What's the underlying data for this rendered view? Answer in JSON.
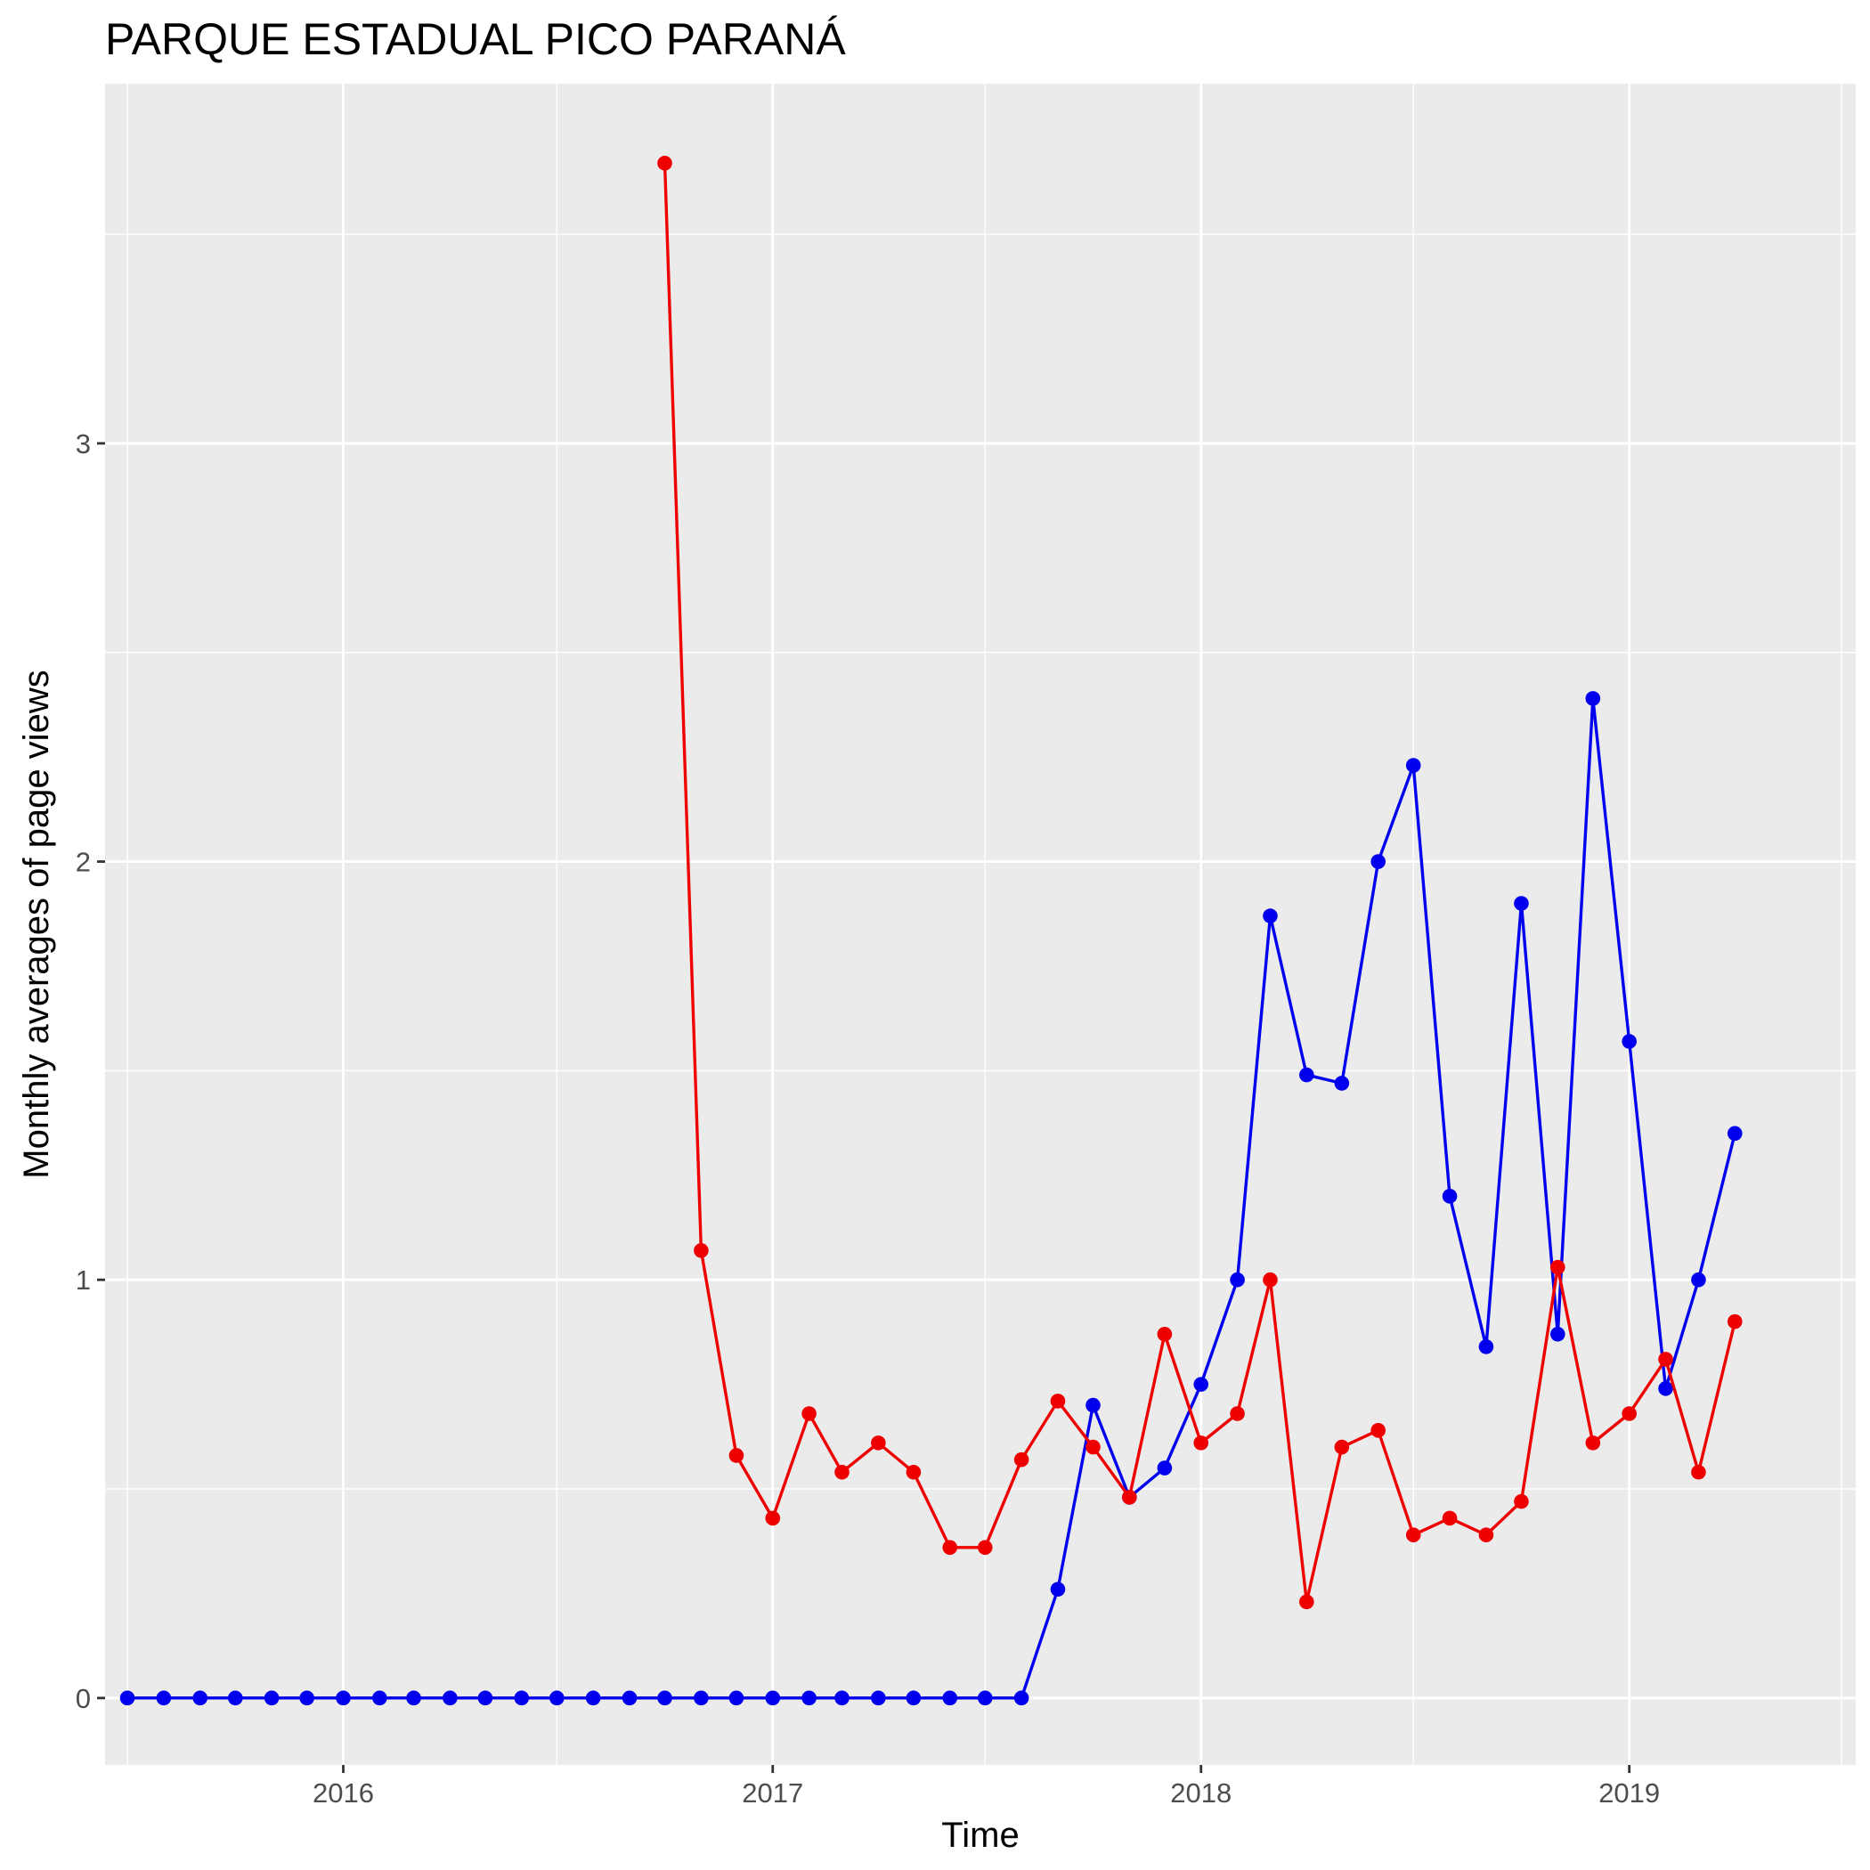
{
  "chart_data": {
    "type": "line",
    "title": "PARQUE ESTADUAL PICO PARANÁ",
    "xlabel": "Time",
    "ylabel": "Monthly averages of page views",
    "x_ticks": [
      "2016",
      "2017",
      "2018",
      "2019"
    ],
    "y_ticks": [
      "0",
      "1",
      "2",
      "3"
    ],
    "xlim": [
      "2015-06-12",
      "2019-07-13"
    ],
    "ylim": [
      -0.16,
      3.86
    ],
    "grid": true,
    "legend": "none",
    "background_color": "#ebebeb",
    "grid_color": "#ffffff",
    "series": [
      {
        "color": "#0000ee",
        "points": [
          [
            "2015-07-01",
            0
          ],
          [
            "2015-08-01",
            0
          ],
          [
            "2015-09-01",
            0
          ],
          [
            "2015-10-01",
            0
          ],
          [
            "2015-11-01",
            0
          ],
          [
            "2015-12-01",
            0
          ],
          [
            "2016-01-01",
            0
          ],
          [
            "2016-02-01",
            0
          ],
          [
            "2016-03-01",
            0
          ],
          [
            "2016-04-01",
            0
          ],
          [
            "2016-05-01",
            0
          ],
          [
            "2016-06-01",
            0
          ],
          [
            "2016-07-01",
            0
          ],
          [
            "2016-08-01",
            0
          ],
          [
            "2016-09-01",
            0
          ],
          [
            "2016-10-01",
            0
          ],
          [
            "2016-11-01",
            0
          ],
          [
            "2016-12-01",
            0
          ],
          [
            "2017-01-01",
            0
          ],
          [
            "2017-02-01",
            0
          ],
          [
            "2017-03-01",
            0
          ],
          [
            "2017-04-01",
            0
          ],
          [
            "2017-05-01",
            0
          ],
          [
            "2017-06-01",
            0
          ],
          [
            "2017-07-01",
            0
          ],
          [
            "2017-08-01",
            0
          ],
          [
            "2017-09-01",
            0.26
          ],
          [
            "2017-10-01",
            0.7
          ],
          [
            "2017-11-01",
            0.48
          ],
          [
            "2017-12-01",
            0.55
          ],
          [
            "2018-01-01",
            0.75
          ],
          [
            "2018-02-01",
            1.0
          ],
          [
            "2018-03-01",
            1.87
          ],
          [
            "2018-04-01",
            1.49
          ],
          [
            "2018-05-01",
            1.47
          ],
          [
            "2018-06-01",
            2.0
          ],
          [
            "2018-07-01",
            2.23
          ],
          [
            "2018-08-01",
            1.2
          ],
          [
            "2018-09-01",
            0.84
          ],
          [
            "2018-10-01",
            1.9
          ],
          [
            "2018-11-01",
            0.87
          ],
          [
            "2018-12-01",
            2.39
          ],
          [
            "2019-01-01",
            1.57
          ],
          [
            "2019-02-01",
            0.74
          ],
          [
            "2019-03-01",
            1.0
          ],
          [
            "2019-04-01",
            1.35
          ]
        ]
      },
      {
        "color": "#ee0000",
        "points": [
          [
            "2016-10-01",
            3.67
          ],
          [
            "2016-11-01",
            1.07
          ],
          [
            "2016-12-01",
            0.58
          ],
          [
            "2017-01-01",
            0.43
          ],
          [
            "2017-02-01",
            0.68
          ],
          [
            "2017-03-01",
            0.54
          ],
          [
            "2017-04-01",
            0.61
          ],
          [
            "2017-05-01",
            0.54
          ],
          [
            "2017-06-01",
            0.36
          ],
          [
            "2017-07-01",
            0.36
          ],
          [
            "2017-08-01",
            0.57
          ],
          [
            "2017-09-01",
            0.71
          ],
          [
            "2017-10-01",
            0.6
          ],
          [
            "2017-11-01",
            0.48
          ],
          [
            "2017-12-01",
            0.87
          ],
          [
            "2018-01-01",
            0.61
          ],
          [
            "2018-02-01",
            0.68
          ],
          [
            "2018-03-01",
            1.0
          ],
          [
            "2018-04-01",
            0.23
          ],
          [
            "2018-05-01",
            0.6
          ],
          [
            "2018-06-01",
            0.64
          ],
          [
            "2018-07-01",
            0.39
          ],
          [
            "2018-08-01",
            0.43
          ],
          [
            "2018-09-01",
            0.39
          ],
          [
            "2018-10-01",
            0.47
          ],
          [
            "2018-11-01",
            1.03
          ],
          [
            "2018-12-01",
            0.61
          ],
          [
            "2019-01-01",
            0.68
          ],
          [
            "2019-02-01",
            0.81
          ],
          [
            "2019-03-01",
            0.54
          ],
          [
            "2019-04-01",
            0.9
          ]
        ]
      }
    ]
  }
}
